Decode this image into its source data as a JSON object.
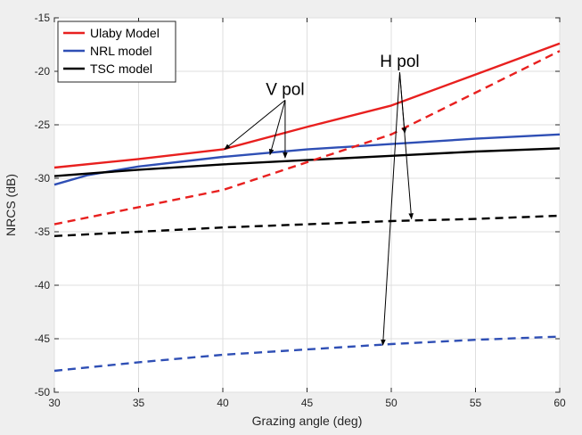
{
  "chart_data": {
    "type": "line",
    "title": "",
    "xlabel": "Grazing angle (deg)",
    "ylabel": "NRCS (dB)",
    "xlim": [
      30,
      60
    ],
    "ylim": [
      -50,
      -15
    ],
    "xticks": [
      30,
      35,
      40,
      45,
      50,
      55,
      60
    ],
    "yticks": [
      -50,
      -45,
      -40,
      -35,
      -30,
      -25,
      -20,
      -15
    ],
    "grid": true,
    "legend": {
      "position": "top-left",
      "entries": [
        {
          "label": "Ulaby Model",
          "color": "#e8201f"
        },
        {
          "label": "NRL model",
          "color": "#2f4fb5"
        },
        {
          "label": "TSC model",
          "color": "#000000"
        }
      ]
    },
    "series": [
      {
        "name": "Ulaby Model",
        "polarization": "V pol",
        "color": "#e8201f",
        "dash": "solid",
        "x": [
          30,
          35,
          40,
          45,
          50,
          55,
          60
        ],
        "y": [
          -29,
          -28.2,
          -27.3,
          -25.2,
          -23.2,
          -20.3,
          -17.4
        ]
      },
      {
        "name": "NRL model",
        "polarization": "V pol",
        "color": "#2f4fb5",
        "dash": "solid",
        "x": [
          30,
          32,
          35,
          40,
          45,
          50,
          55,
          60
        ],
        "y": [
          -30.6,
          -29.7,
          -28.9,
          -28,
          -27.3,
          -26.8,
          -26.3,
          -25.9
        ]
      },
      {
        "name": "TSC model",
        "polarization": "V pol",
        "color": "#000000",
        "dash": "solid",
        "x": [
          30,
          35,
          40,
          45,
          50,
          55,
          60
        ],
        "y": [
          -29.8,
          -29.2,
          -28.7,
          -28.3,
          -27.9,
          -27.5,
          -27.2
        ]
      },
      {
        "name": "Ulaby Model",
        "polarization": "H pol",
        "color": "#e8201f",
        "dash": "dashed",
        "x": [
          30,
          35,
          40,
          45,
          50,
          55,
          60
        ],
        "y": [
          -34.3,
          -32.7,
          -31.1,
          -28.5,
          -25.9,
          -22,
          -18.1
        ]
      },
      {
        "name": "TSC model",
        "polarization": "H pol",
        "color": "#000000",
        "dash": "dashed",
        "x": [
          30,
          35,
          40,
          45,
          50,
          55,
          60
        ],
        "y": [
          -35.4,
          -35,
          -34.6,
          -34.3,
          -34,
          -33.8,
          -33.5
        ]
      },
      {
        "name": "NRL model",
        "polarization": "H pol",
        "color": "#2f4fb5",
        "dash": "dashed",
        "x": [
          30,
          35,
          40,
          45,
          50,
          55,
          60
        ],
        "y": [
          -48,
          -47.2,
          -46.5,
          -46,
          -45.5,
          -45.1,
          -44.8
        ]
      }
    ],
    "annotations": [
      {
        "text": "V pol",
        "label_at": [
          43.7,
          -22.2
        ],
        "arrows_to": [
          [
            40.1,
            -27.3
          ],
          [
            42.8,
            -27.8
          ],
          [
            43.7,
            -28.1
          ]
        ]
      },
      {
        "text": "H pol",
        "label_at": [
          50.5,
          -19.6
        ],
        "arrows_to": [
          [
            50.8,
            -25.8
          ],
          [
            51.2,
            -33.8
          ],
          [
            49.5,
            -45.6
          ]
        ]
      }
    ]
  }
}
